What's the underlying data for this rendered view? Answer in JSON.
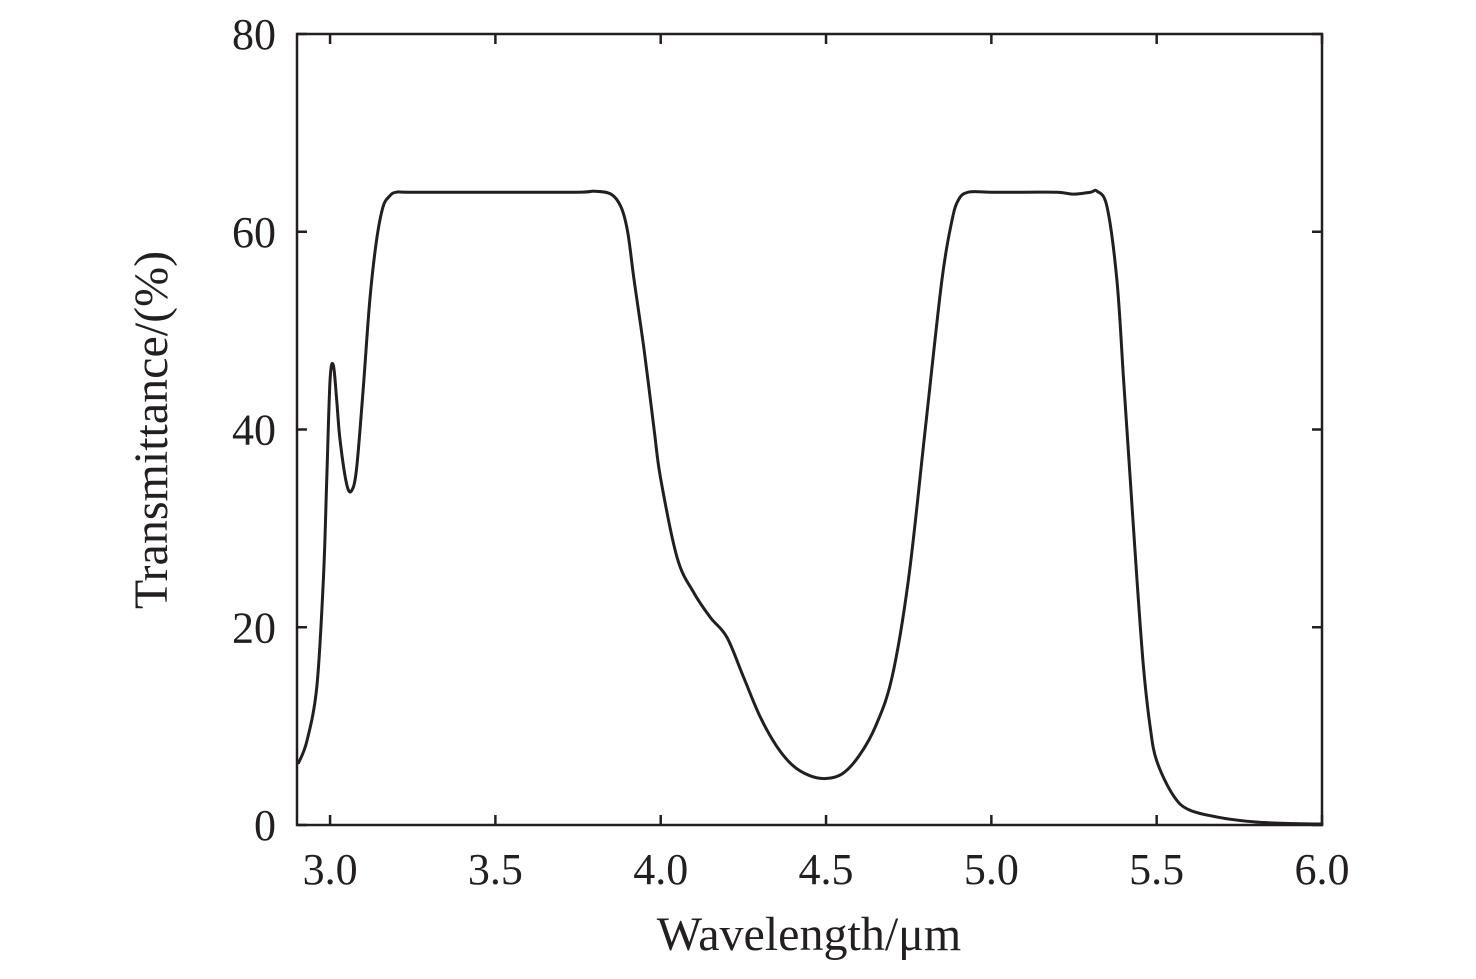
{
  "chart_data": {
    "type": "line",
    "title": "",
    "xlabel": "Wavelength/μm",
    "ylabel": "Transmittance/(%)",
    "xlim": [
      2.9,
      6.0
    ],
    "ylim": [
      0,
      80
    ],
    "xticks": [
      3.0,
      3.5,
      4.0,
      4.5,
      5.0,
      5.5,
      6.0
    ],
    "xtick_labels": [
      "3.0",
      "3.5",
      "4.0",
      "4.5",
      "5.0",
      "5.5",
      "6.0"
    ],
    "yticks": [
      0,
      20,
      40,
      60,
      80
    ],
    "ytick_labels": [
      "0",
      "20",
      "40",
      "60",
      "80"
    ],
    "grid": false,
    "line_color": "#231f20",
    "series": [
      {
        "values": [
          [
            2.905,
            6.3
          ],
          [
            2.93,
            8.5
          ],
          [
            2.96,
            14
          ],
          [
            2.98,
            25
          ],
          [
            2.99,
            35
          ],
          [
            3.0,
            45
          ],
          [
            3.01,
            46.5
          ],
          [
            3.02,
            43
          ],
          [
            3.03,
            39
          ],
          [
            3.05,
            34.5
          ],
          [
            3.065,
            33.8
          ],
          [
            3.08,
            36
          ],
          [
            3.1,
            44
          ],
          [
            3.12,
            53
          ],
          [
            3.14,
            59
          ],
          [
            3.16,
            62.5
          ],
          [
            3.18,
            63.6
          ],
          [
            3.2,
            64.0
          ],
          [
            3.25,
            64.0
          ],
          [
            3.5,
            64.0
          ],
          [
            3.75,
            64.0
          ],
          [
            3.8,
            64.1
          ],
          [
            3.85,
            63.8
          ],
          [
            3.88,
            62.5
          ],
          [
            3.9,
            60
          ],
          [
            3.92,
            55
          ],
          [
            3.95,
            48
          ],
          [
            3.98,
            40
          ],
          [
            4.0,
            35
          ],
          [
            4.05,
            27
          ],
          [
            4.1,
            23.5
          ],
          [
            4.15,
            21
          ],
          [
            4.2,
            19
          ],
          [
            4.25,
            15
          ],
          [
            4.3,
            11
          ],
          [
            4.35,
            8
          ],
          [
            4.4,
            6
          ],
          [
            4.45,
            5
          ],
          [
            4.5,
            4.7
          ],
          [
            4.55,
            5.2
          ],
          [
            4.6,
            7
          ],
          [
            4.65,
            10
          ],
          [
            4.7,
            15
          ],
          [
            4.75,
            25
          ],
          [
            4.8,
            40
          ],
          [
            4.85,
            55
          ],
          [
            4.88,
            61
          ],
          [
            4.9,
            63.2
          ],
          [
            4.93,
            64.0
          ],
          [
            5.0,
            64.0
          ],
          [
            5.1,
            64.0
          ],
          [
            5.2,
            64.0
          ],
          [
            5.25,
            63.8
          ],
          [
            5.3,
            64.0
          ],
          [
            5.32,
            64.1
          ],
          [
            5.35,
            62.5
          ],
          [
            5.38,
            55
          ],
          [
            5.4,
            45
          ],
          [
            5.42,
            35
          ],
          [
            5.44,
            25
          ],
          [
            5.46,
            16
          ],
          [
            5.48,
            10
          ],
          [
            5.5,
            6.5
          ],
          [
            5.55,
            3
          ],
          [
            5.6,
            1.5
          ],
          [
            5.7,
            0.7
          ],
          [
            5.8,
            0.3
          ],
          [
            5.9,
            0.15
          ],
          [
            6.0,
            0.1
          ]
        ]
      }
    ]
  }
}
